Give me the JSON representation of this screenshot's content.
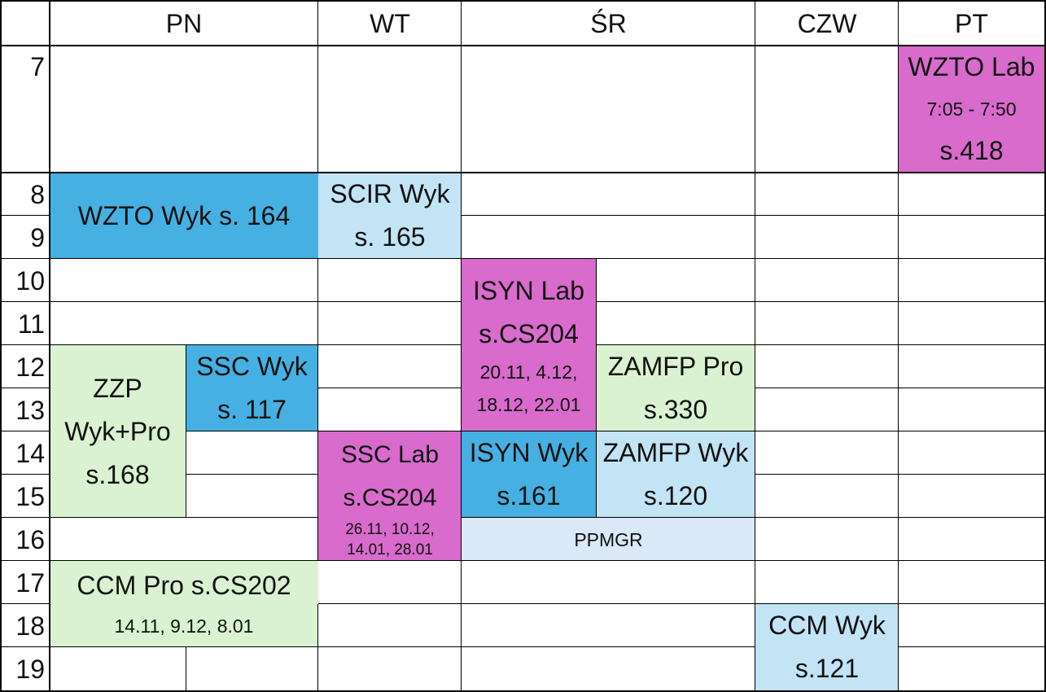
{
  "colors": {
    "lab": "#D86BCB",
    "lecture_dark": "#45B0E1",
    "lecture_light": "#C2E4F4",
    "project": "#DAF2D1",
    "ppmgr": "#DAE8F7",
    "grid": "#000000"
  },
  "days": [
    "PN",
    "WT",
    "ŚR",
    "CZW",
    "PT"
  ],
  "hours": [
    "7",
    "8",
    "9",
    "10",
    "11",
    "12",
    "13",
    "14",
    "15",
    "16",
    "17",
    "18",
    "19"
  ],
  "events": {
    "wzto_lab": {
      "lines": [
        "WZTO Lab",
        "7:05 - 7:50",
        "s.418"
      ]
    },
    "wzto_wyk": {
      "lines": [
        "WZTO Wyk s. 164"
      ]
    },
    "scir_wyk": {
      "lines": [
        "SCIR Wyk",
        "s. 165"
      ]
    },
    "isyn_lab": {
      "lines": [
        "ISYN Lab",
        "s.CS204",
        "20.11, 4.12,",
        "18.12, 22.01"
      ]
    },
    "zzp": {
      "lines": [
        "ZZP",
        "Wyk+Pro",
        "s.168"
      ]
    },
    "ssc_wyk": {
      "lines": [
        "SSC Wyk",
        "s. 117"
      ]
    },
    "zamfp_pro": {
      "lines": [
        "ZAMFP Pro",
        "s.330"
      ]
    },
    "ssc_lab": {
      "lines": [
        "SSC Lab",
        "s.CS204",
        "26.11, 10.12,",
        "14.01, 28.01"
      ]
    },
    "isyn_wyk": {
      "lines": [
        "ISYN Wyk",
        "s.161"
      ]
    },
    "zamfp_wyk": {
      "lines": [
        "ZAMFP Wyk",
        "s.120"
      ]
    },
    "ppmgr": {
      "lines": [
        "PPMGR"
      ]
    },
    "ccm_pro": {
      "lines": [
        "CCM Pro s.CS202",
        "14.11, 9.12, 8.01"
      ]
    },
    "ccm_wyk": {
      "lines": [
        "CCM Wyk",
        "s.121"
      ]
    }
  }
}
